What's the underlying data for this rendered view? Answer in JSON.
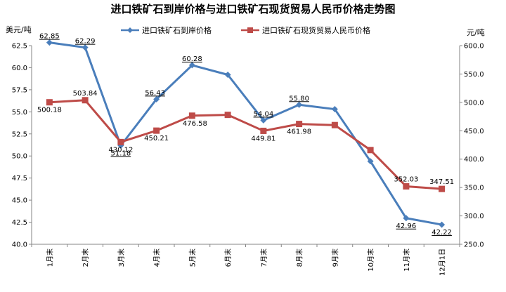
{
  "chart_data": {
    "type": "line",
    "title": "进口铁矿石到岸价格与进口铁矿石现货贸易人民币价格走势图",
    "ylabel_left": "美元/吨",
    "ylabel_right": "元/吨",
    "categories": [
      "1月末",
      "2月末",
      "3月末",
      "4月末",
      "5月末",
      "6月末",
      "7月末",
      "8月末",
      "9月末",
      "10月末",
      "11月末",
      "12月1日"
    ],
    "ylim_left": [
      40.0,
      62.5
    ],
    "yticks_left": [
      "40.0",
      "42.5",
      "45.0",
      "47.5",
      "50.0",
      "52.5",
      "55.0",
      "57.5",
      "60.0",
      "62.5"
    ],
    "ylim_right": [
      250.0,
      600.0
    ],
    "yticks_right": [
      "250.0",
      "300.0",
      "350.0",
      "400.0",
      "450.0",
      "500.0",
      "550.0",
      "600.0"
    ],
    "legend_position": "top",
    "grid": false,
    "series": [
      {
        "name": "进口铁矿石到岸价格",
        "axis": "left",
        "color": "#4A7EBB",
        "marker": "diamond",
        "values": [
          62.85,
          62.29,
          51.18,
          56.43,
          60.28,
          59.2,
          54.04,
          55.8,
          55.3,
          49.4,
          42.96,
          42.22
        ],
        "labels": [
          "62.85",
          "62.29",
          "51.18",
          "56.43",
          "60.28",
          null,
          "54.04",
          "55.80",
          null,
          null,
          "42.96",
          "42.22"
        ]
      },
      {
        "name": "进口铁矿石现货贸易人民币价格",
        "axis": "right",
        "color": "#BE4B48",
        "marker": "square",
        "values": [
          500.18,
          503.84,
          430.12,
          450.21,
          476.58,
          478.0,
          449.81,
          461.98,
          460.0,
          416.0,
          352.03,
          347.51
        ],
        "labels": [
          "500.18",
          "503.84",
          "430.12",
          "450.21",
          "476.58",
          null,
          "449.81",
          "461.98",
          null,
          null,
          "352.03",
          "347.51"
        ]
      }
    ]
  }
}
